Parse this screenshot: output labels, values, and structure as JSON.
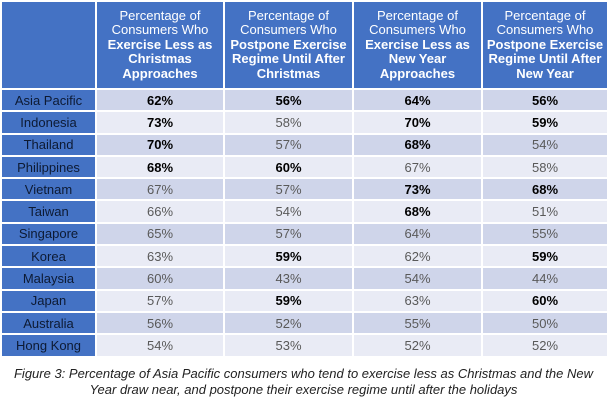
{
  "colors": {
    "header_bg": "#4472C4",
    "row_dark": "#CFD5EA",
    "row_light": "#E9EBF5",
    "text_normal": "#595959",
    "text_bold": "#000000"
  },
  "table": {
    "columns": [
      {
        "lead": "Percentage of Consumers Who",
        "main": "Exercise Less as Christmas Approaches"
      },
      {
        "lead": "Percentage of Consumers Who",
        "main": "Postpone Exercise Regime Until After Christmas"
      },
      {
        "lead": "Percentage of Consumers Who",
        "main": "Exercise Less as New Year Approaches"
      },
      {
        "lead": "Percentage of Consumers Who",
        "main": "Postpone Exercise Regime Until After New Year"
      }
    ],
    "rows": [
      {
        "country": "Asia Pacific",
        "values": [
          "62%",
          "56%",
          "64%",
          "56%"
        ],
        "bold": [
          true,
          true,
          true,
          true
        ]
      },
      {
        "country": "Indonesia",
        "values": [
          "73%",
          "58%",
          "70%",
          "59%"
        ],
        "bold": [
          true,
          false,
          true,
          true
        ]
      },
      {
        "country": "Thailand",
        "values": [
          "70%",
          "57%",
          "68%",
          "54%"
        ],
        "bold": [
          true,
          false,
          true,
          false
        ]
      },
      {
        "country": "Philippines",
        "values": [
          "68%",
          "60%",
          "67%",
          "58%"
        ],
        "bold": [
          true,
          true,
          false,
          false
        ]
      },
      {
        "country": "Vietnam",
        "values": [
          "67%",
          "57%",
          "73%",
          "68%"
        ],
        "bold": [
          false,
          false,
          true,
          true
        ]
      },
      {
        "country": "Taiwan",
        "values": [
          "66%",
          "54%",
          "68%",
          "51%"
        ],
        "bold": [
          false,
          false,
          true,
          false
        ]
      },
      {
        "country": "Singapore",
        "values": [
          "65%",
          "57%",
          "64%",
          "55%"
        ],
        "bold": [
          false,
          false,
          false,
          false
        ]
      },
      {
        "country": "Korea",
        "values": [
          "63%",
          "59%",
          "62%",
          "59%"
        ],
        "bold": [
          false,
          true,
          false,
          true
        ]
      },
      {
        "country": "Malaysia",
        "values": [
          "60%",
          "43%",
          "54%",
          "44%"
        ],
        "bold": [
          false,
          false,
          false,
          false
        ]
      },
      {
        "country": "Japan",
        "values": [
          "57%",
          "59%",
          "63%",
          "60%"
        ],
        "bold": [
          false,
          true,
          false,
          true
        ]
      },
      {
        "country": "Australia",
        "values": [
          "56%",
          "52%",
          "55%",
          "50%"
        ],
        "bold": [
          false,
          false,
          false,
          false
        ]
      },
      {
        "country": "Hong Kong",
        "values": [
          "54%",
          "53%",
          "52%",
          "52%"
        ],
        "bold": [
          false,
          false,
          false,
          false
        ]
      }
    ]
  },
  "caption": "Figure 3: Percentage of Asia Pacific consumers who tend to exercise less as Christmas and the New Year draw near, and postpone their exercise regime until after the holidays"
}
